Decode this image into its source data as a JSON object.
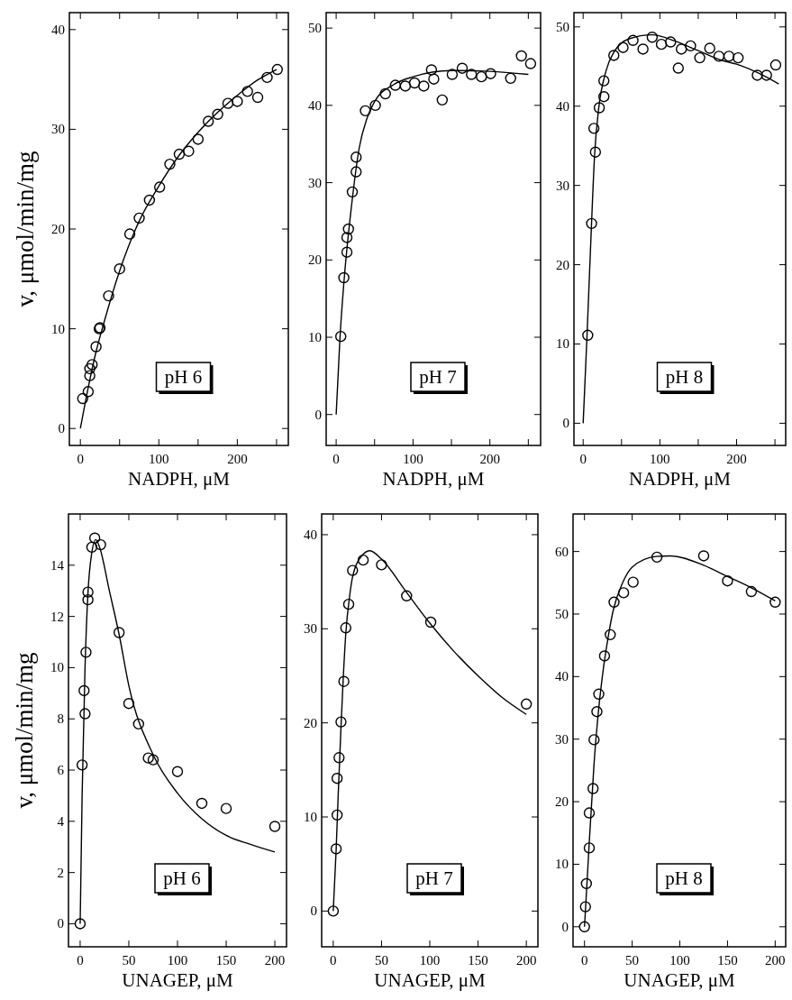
{
  "chart_data": [
    {
      "type": "scatter",
      "xlabel": "NADPH, μM",
      "ylabel": "v, μmol/min/mg",
      "annotations": [
        "pH 6"
      ],
      "xlim": [
        -14,
        265
      ],
      "ylim": [
        -1.7,
        41.7
      ],
      "xticks": [
        0,
        {
          "value": 50,
          "label": null
        },
        100,
        {
          "value": 150,
          "label": null
        },
        200,
        {
          "value": 250,
          "label": null
        }
      ],
      "yticks": [
        0,
        10,
        20,
        30,
        40
      ],
      "series": [
        {
          "type": "scatter",
          "marker": "circle",
          "color": "#000000",
          "x": [
            3,
            10,
            12,
            12,
            15,
            20,
            24,
            25,
            36,
            50,
            63,
            75,
            88,
            101,
            114,
            126,
            138,
            150,
            163,
            175,
            188,
            200,
            213,
            226,
            238,
            251
          ],
          "values": [
            3.0,
            3.7,
            5.3,
            6.0,
            6.4,
            8.2,
            10.0,
            10.1,
            13.3,
            16.0,
            19.5,
            21.1,
            22.9,
            24.2,
            26.5,
            27.5,
            27.8,
            29.0,
            30.8,
            31.5,
            32.6,
            32.8,
            33.8,
            33.2,
            35.2,
            36.0
          ]
        },
        {
          "type": "line",
          "line_style": "solid",
          "color": "#000000",
          "x": [
            0,
            10,
            20,
            30,
            50,
            75,
            100,
            125,
            150,
            175,
            200,
            225,
            250
          ],
          "values": [
            0,
            4.1,
            7.7,
            10.6,
            15.8,
            20.8,
            24.3,
            27.3,
            29.7,
            31.7,
            33.4,
            34.9,
            36.0
          ]
        }
      ]
    },
    {
      "type": "scatter",
      "xlabel": "NADPH, μM",
      "annotations": [
        "pH 7"
      ],
      "xlim": [
        -13,
        266
      ],
      "ylim": [
        -4,
        52
      ],
      "xticks": [
        0,
        {
          "value": 50,
          "label": null
        },
        100,
        {
          "value": 150,
          "label": null
        },
        200,
        {
          "value": 250,
          "label": null
        }
      ],
      "yticks": [
        0,
        10,
        20,
        30,
        40,
        50
      ],
      "series": [
        {
          "type": "scatter",
          "marker": "circle",
          "color": "#000000",
          "x": [
            6,
            10,
            14,
            14,
            16,
            21,
            26,
            26,
            38,
            51,
            64,
            77,
            90,
            102,
            114,
            124,
            127,
            138,
            151,
            164,
            176,
            189,
            201,
            227,
            241,
            253
          ],
          "values": [
            10.1,
            17.7,
            21.0,
            22.9,
            24.0,
            28.8,
            31.4,
            33.3,
            39.3,
            40.0,
            41.5,
            42.6,
            42.5,
            42.9,
            42.5,
            44.6,
            43.4,
            40.7,
            44.0,
            44.8,
            44.0,
            43.7,
            44.1,
            43.5,
            46.4,
            45.4
          ]
        },
        {
          "type": "line",
          "line_style": "solid",
          "color": "#000000",
          "x": [
            0,
            5,
            10,
            20,
            30,
            40,
            50,
            75,
            100,
            150,
            200,
            250
          ],
          "values": [
            0,
            10,
            17,
            27,
            34.5,
            38.3,
            40.5,
            42.7,
            43.7,
            44.5,
            44.4,
            44.0
          ]
        }
      ]
    },
    {
      "type": "scatter",
      "xlabel": "NADPH, μM",
      "annotations": [
        "pH 8"
      ],
      "xlim": [
        -12,
        264
      ],
      "ylim": [
        -2.8,
        51.8
      ],
      "xticks": [
        0,
        {
          "value": 50,
          "label": null
        },
        100,
        {
          "value": 150,
          "label": null
        },
        200,
        {
          "value": 250,
          "label": null
        }
      ],
      "yticks": [
        0,
        10,
        20,
        30,
        40,
        50
      ],
      "series": [
        {
          "type": "scatter",
          "marker": "circle",
          "color": "#000000",
          "x": [
            6,
            11,
            14,
            16,
            21,
            27,
            27,
            40,
            52,
            65,
            78,
            90,
            102,
            114,
            124,
            128,
            140,
            152,
            165,
            177,
            190,
            202,
            227,
            239,
            251
          ],
          "values": [
            11.1,
            25.2,
            37.2,
            34.2,
            39.8,
            41.2,
            43.2,
            46.4,
            47.4,
            48.3,
            47.2,
            48.7,
            47.8,
            48.1,
            44.8,
            47.2,
            47.6,
            46.1,
            47.3,
            46.3,
            46.3,
            46.1,
            43.9,
            43.9,
            45.2
          ]
        },
        {
          "type": "line",
          "line_style": "solid",
          "color": "#000000",
          "x": [
            0,
            5,
            10,
            15,
            20,
            30,
            40,
            60,
            90,
            120,
            150,
            180,
            200,
            230,
            255
          ],
          "values": [
            0,
            11,
            23,
            34,
            39.5,
            44.5,
            46.8,
            48.5,
            49.0,
            48.2,
            47.0,
            45.8,
            45.3,
            44.1,
            42.8
          ]
        }
      ]
    },
    {
      "type": "scatter",
      "xlabel": "UNAGEP, μM",
      "ylabel": "v, μmol/min/mg",
      "annotations": [
        "pH 6"
      ],
      "xlim": [
        -12,
        212
      ],
      "ylim": [
        -0.9,
        16
      ],
      "xticks": [
        0,
        50,
        100,
        150,
        200
      ],
      "yticks": [
        0,
        2,
        4,
        6,
        8,
        10,
        12,
        14
      ],
      "series": [
        {
          "type": "scatter",
          "marker": "circle",
          "color": "#000000",
          "x": [
            0,
            2,
            4,
            5,
            6,
            8,
            8,
            12,
            15,
            21,
            40,
            50,
            60,
            70,
            75,
            100,
            125,
            150,
            200
          ],
          "values": [
            0,
            6.2,
            9.1,
            8.2,
            10.6,
            12.65,
            12.95,
            14.7,
            15.06,
            14.8,
            11.37,
            8.6,
            7.8,
            6.47,
            6.4,
            5.94,
            4.7,
            4.5,
            3.8
          ]
        },
        {
          "type": "line",
          "line_style": "solid",
          "color": "#000000",
          "x": [
            0,
            2,
            5,
            8,
            12,
            16,
            20,
            30,
            40,
            50,
            75,
            100,
            125,
            150,
            175,
            200
          ],
          "values": [
            0,
            5,
            10,
            12.9,
            14.5,
            15.0,
            14.7,
            13.0,
            11.3,
            9.3,
            6.6,
            5.1,
            4.1,
            3.45,
            3.1,
            2.8
          ]
        }
      ]
    },
    {
      "type": "scatter",
      "xlabel": "UNAGEP, μM",
      "annotations": [
        "pH 7"
      ],
      "xlim": [
        -12,
        212
      ],
      "ylim": [
        -3.8,
        42.2
      ],
      "xticks": [
        0,
        50,
        100,
        150,
        200
      ],
      "yticks": [
        0,
        10,
        20,
        30,
        40
      ],
      "series": [
        {
          "type": "scatter",
          "marker": "circle",
          "color": "#000000",
          "x": [
            0,
            3,
            4,
            4,
            6,
            8,
            11,
            13,
            16,
            20,
            31,
            50,
            76,
            101,
            200
          ],
          "values": [
            0,
            6.6,
            10.2,
            14.1,
            16.3,
            20.1,
            24.4,
            30.1,
            32.6,
            36.2,
            37.3,
            36.8,
            33.5,
            30.7,
            22.0
          ]
        },
        {
          "type": "line",
          "line_style": "solid",
          "color": "#000000",
          "x": [
            0,
            3,
            5,
            8,
            10,
            13,
            17,
            20,
            30,
            38,
            50,
            75,
            100,
            125,
            150,
            175,
            200
          ],
          "values": [
            0,
            6.5,
            12,
            19.5,
            24,
            29.5,
            33.5,
            35.5,
            37.8,
            38.3,
            37.4,
            34,
            30.6,
            27.6,
            25.0,
            22.7,
            20.9
          ]
        }
      ]
    },
    {
      "type": "scatter",
      "xlabel": "UNAGEP, μM",
      "annotations": [
        "pH 8"
      ],
      "xlim": [
        -12,
        211
      ],
      "ylim": [
        -3.2,
        66
      ],
      "xticks": [
        0,
        50,
        100,
        150,
        200
      ],
      "yticks": [
        0,
        10,
        20,
        30,
        40,
        50,
        60
      ],
      "series": [
        {
          "type": "scatter",
          "marker": "circle",
          "color": "#000000",
          "x": [
            0,
            1,
            2,
            5,
            5,
            9,
            10,
            13,
            15,
            21,
            27,
            31,
            41,
            51,
            76,
            125,
            150,
            175,
            200
          ],
          "values": [
            0,
            3.2,
            6.9,
            12.6,
            18.2,
            22.1,
            29.9,
            34.4,
            37.2,
            43.3,
            46.7,
            51.9,
            53.4,
            55.1,
            59.1,
            59.3,
            55.3,
            53.6,
            51.9
          ]
        },
        {
          "type": "line",
          "line_style": "solid",
          "color": "#000000",
          "x": [
            0,
            3,
            5,
            8,
            10,
            15,
            20,
            25,
            30,
            40,
            50,
            75,
            90,
            125,
            150,
            175,
            200
          ],
          "values": [
            0,
            8,
            13.5,
            21,
            26,
            35,
            41.5,
            46.5,
            50.5,
            55,
            57.5,
            59.2,
            59.3,
            57.8,
            56,
            54.2,
            52.1
          ]
        }
      ]
    }
  ]
}
